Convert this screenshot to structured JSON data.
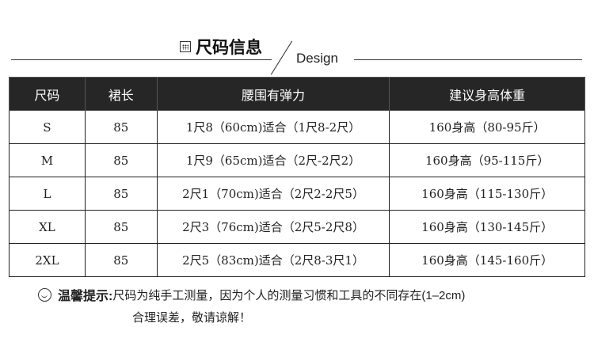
{
  "header": {
    "title": "尺码信息",
    "subtitle": "Design",
    "icon": "calendar-icon"
  },
  "table": {
    "columns": [
      "尺码",
      "裙长",
      "腰围有弹力",
      "建议身高体重"
    ],
    "rows": [
      [
        "S",
        "85",
        "1尺8（60cm)适合（1尺8-2尺）",
        "160身高（80-95斤）"
      ],
      [
        "M",
        "85",
        "1尺9（65cm)适合（2尺-2尺2）",
        "160身高（95-115斤）"
      ],
      [
        "L",
        "85",
        "2尺1（70cm)适合（2尺2-2尺5）",
        "160身高（115-130斤）"
      ],
      [
        "XL",
        "85",
        "2尺3（76cm)适合（2尺5-2尺8）",
        "160身高（130-145斤）"
      ],
      [
        "2XL",
        "85",
        "2尺5（83cm)适合（2尺8-3尺1）",
        "160身高（145-160斤）"
      ]
    ]
  },
  "tip": {
    "icon": "smiley-icon",
    "label": "温馨提示:",
    "line1": "尺码为纯手工测量，因为个人的测量习惯和工具的不同存在(1–2cm)",
    "line2": "合理误差，敬请谅解！"
  }
}
